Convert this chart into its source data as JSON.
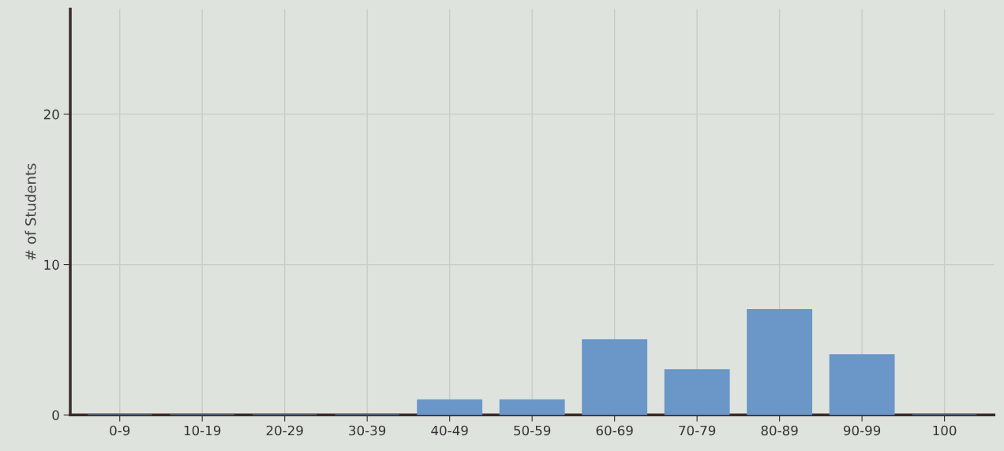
{
  "chart_data": {
    "type": "bar",
    "ylabel": "# of Students",
    "categories": [
      "0-9",
      "10-19",
      "20-29",
      "30-39",
      "40-49",
      "50-59",
      "60-69",
      "70-79",
      "80-89",
      "90-99",
      "100"
    ],
    "values": [
      0,
      0,
      0,
      0,
      1,
      1,
      5,
      3,
      7,
      4,
      0
    ],
    "color": "#6a96c8",
    "ylim": [
      0,
      27
    ],
    "yticks": [
      0,
      10,
      20
    ],
    "grid": true
  }
}
